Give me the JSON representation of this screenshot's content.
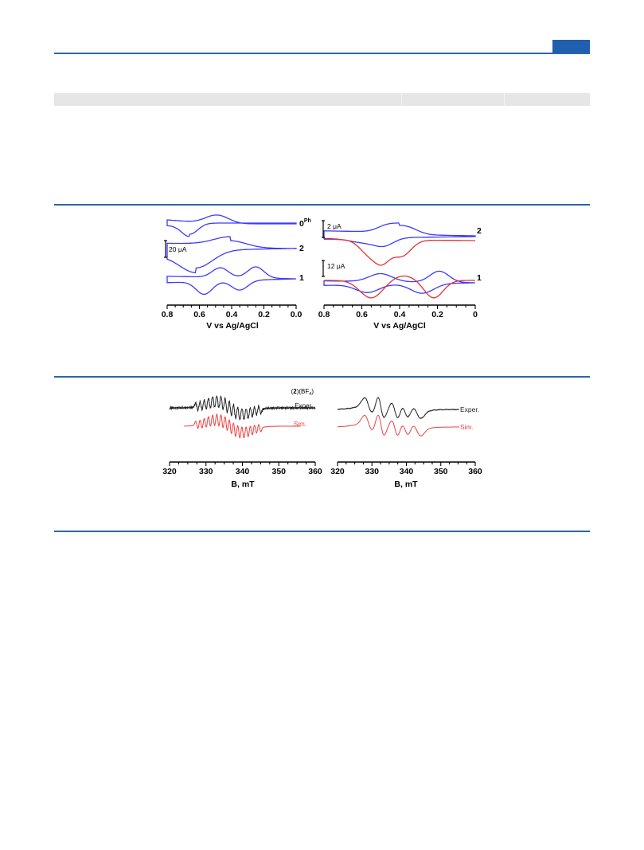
{
  "cv_left": {
    "x_axis": {
      "title": "V vs Ag/AgCl",
      "ticks": [
        "0.8",
        "0.6",
        "0.4",
        "0.2",
        "0.0"
      ],
      "range": [
        0.8,
        0.0
      ]
    },
    "scale_bar": {
      "value": "20",
      "unit": "μA"
    },
    "traces": [
      {
        "label_main": "0",
        "label_sup": "Ph",
        "color": "#3a3aff",
        "peaks": [
          0.49,
          0.66
        ]
      },
      {
        "label_main": "2",
        "label_sup": "",
        "color": "#3a3aff",
        "peaks": [
          0.41,
          0.62
        ]
      },
      {
        "label_main": "1",
        "label_sup": "",
        "color": "#3a3aff",
        "peaks": [
          0.47,
          0.25,
          0.57,
          0.35
        ]
      }
    ]
  },
  "cv_right": {
    "x_axis": {
      "title": "V vs Ag/AgCl",
      "ticks": [
        "0.8",
        "0.6",
        "0.4",
        "0.2",
        "0"
      ],
      "range": [
        0.8,
        0.0
      ]
    },
    "scale_bars": [
      {
        "value": "2",
        "unit": "μA"
      },
      {
        "value": "12",
        "unit": "μA"
      }
    ],
    "traces": [
      {
        "label": "2",
        "cv_color": "#3a3aff",
        "derivative_color": "#e83030"
      },
      {
        "label": "1",
        "cv_color": "#3a3aff",
        "derivative_color": "#e83030"
      }
    ]
  },
  "epr_left": {
    "x_axis": {
      "title": "B, mT",
      "ticks": [
        "320",
        "330",
        "340",
        "350",
        "360"
      ],
      "range": [
        320,
        360
      ]
    },
    "compound_label": {
      "paren_open": "(",
      "bold": "2",
      "rest": ")(BF",
      "sub": "4",
      "close": ")"
    },
    "legend": {
      "exper": "Exper.",
      "sim": "Sim."
    },
    "colors": {
      "exper": "#222222",
      "sim": "#f04040"
    }
  },
  "epr_right": {
    "x_axis": {
      "title": "B, mT",
      "ticks": [
        "320",
        "330",
        "340",
        "350",
        "360"
      ],
      "range": [
        320,
        360
      ]
    },
    "legend": {
      "exper": "Exper.",
      "sim": "Sim."
    },
    "colors": {
      "exper": "#222222",
      "sim": "#f04040"
    }
  }
}
